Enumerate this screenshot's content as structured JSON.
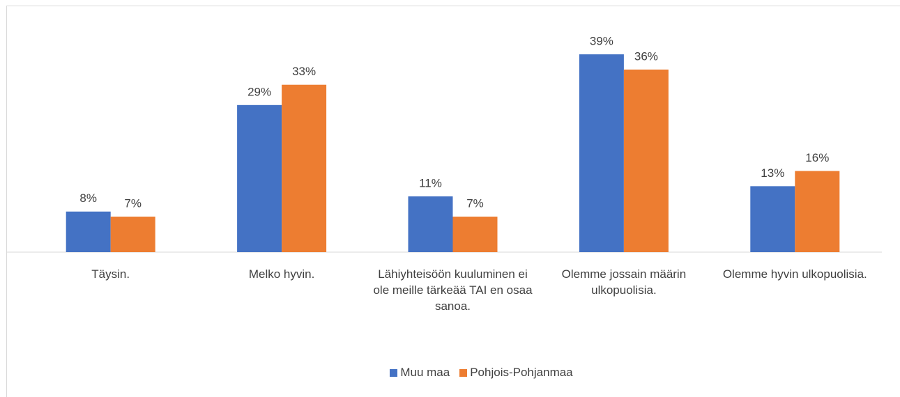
{
  "chart_data": {
    "type": "bar",
    "categories": [
      "Täysin.",
      "Melko hyvin.",
      "Lähiyhteisöön kuuluminen ei ole meille tärkeää TAI en osaa sanoa.",
      "Olemme jossain määrin ulkopuolisia.",
      "Olemme hyvin ulkopuolisia."
    ],
    "series": [
      {
        "name": "Muu maa",
        "color": "#4472c4",
        "values": [
          8,
          29,
          11,
          39,
          13
        ],
        "value_labels": [
          "8%",
          "29%",
          "11%",
          "39%",
          "13%"
        ]
      },
      {
        "name": "Pohjois-Pohjanmaa",
        "color": "#ed7d31",
        "values": [
          7,
          33,
          7,
          36,
          16
        ],
        "value_labels": [
          "7%",
          "33%",
          "7%",
          "36%",
          "16%"
        ]
      }
    ],
    "legend": "bottom"
  }
}
